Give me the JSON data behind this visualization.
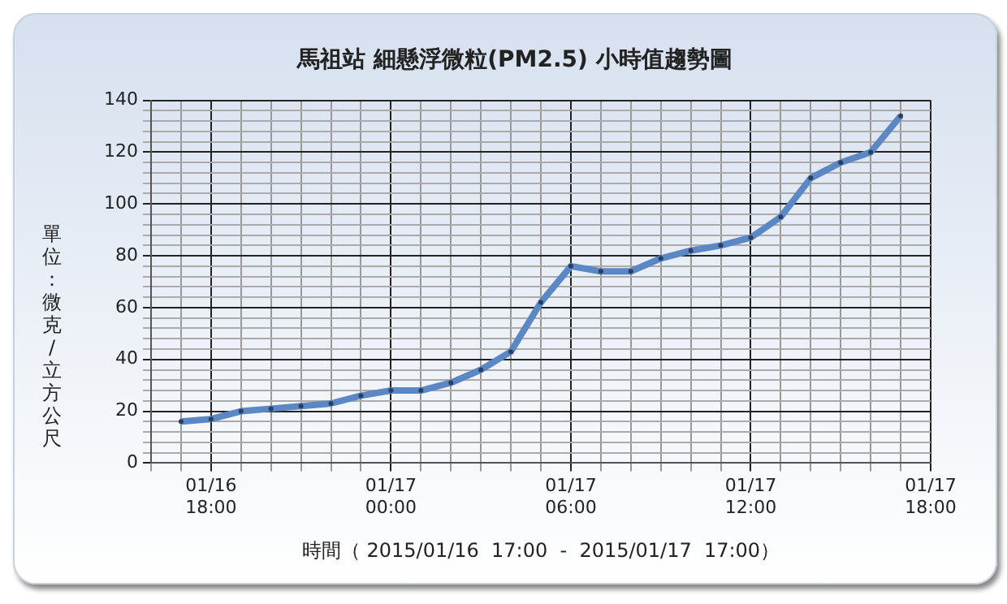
{
  "chart_data": {
    "type": "line",
    "title": "馬祖站 細懸浮微粒(PM2.5) 小時值趨勢圖",
    "xlabel": "時間（ 2015/01/16  17:00  -  2015/01/17  17:00）",
    "ylabel": "單位：微克/立方公尺",
    "x": [
      "2015-01-16T17:00",
      "2015-01-16T18:00",
      "2015-01-16T19:00",
      "2015-01-16T20:00",
      "2015-01-16T21:00",
      "2015-01-16T22:00",
      "2015-01-16T23:00",
      "2015-01-17T00:00",
      "2015-01-17T01:00",
      "2015-01-17T02:00",
      "2015-01-17T03:00",
      "2015-01-17T04:00",
      "2015-01-17T05:00",
      "2015-01-17T06:00",
      "2015-01-17T07:00",
      "2015-01-17T08:00",
      "2015-01-17T09:00",
      "2015-01-17T10:00",
      "2015-01-17T11:00",
      "2015-01-17T12:00",
      "2015-01-17T13:00",
      "2015-01-17T14:00",
      "2015-01-17T15:00",
      "2015-01-17T16:00",
      "2015-01-17T17:00"
    ],
    "series": [
      {
        "color": "#5b87c4",
        "values": [
          16,
          17,
          20,
          21,
          22,
          23,
          26,
          28,
          28,
          31,
          36,
          43,
          62,
          76,
          74,
          74,
          79,
          82,
          84,
          87,
          95,
          110,
          116,
          120,
          134
        ]
      }
    ],
    "xlim": [
      "2015-01-16T16:00",
      "2015-01-17T18:00"
    ],
    "xticks": [
      {
        "value": "2015-01-16T16:00",
        "label": null
      },
      {
        "value": "2015-01-16T17:00",
        "label": null
      },
      {
        "value": "2015-01-16T18:00",
        "label": "01/16 18:00"
      },
      {
        "value": "2015-01-16T19:00",
        "label": null
      },
      {
        "value": "2015-01-16T20:00",
        "label": null
      },
      {
        "value": "2015-01-16T21:00",
        "label": null
      },
      {
        "value": "2015-01-16T22:00",
        "label": null
      },
      {
        "value": "2015-01-16T23:00",
        "label": null
      },
      {
        "value": "2015-01-17T00:00",
        "label": "01/17 00:00"
      },
      {
        "value": "2015-01-17T01:00",
        "label": null
      },
      {
        "value": "2015-01-17T02:00",
        "label": null
      },
      {
        "value": "2015-01-17T03:00",
        "label": null
      },
      {
        "value": "2015-01-17T04:00",
        "label": null
      },
      {
        "value": "2015-01-17T05:00",
        "label": null
      },
      {
        "value": "2015-01-17T06:00",
        "label": "01/17 06:00"
      },
      {
        "value": "2015-01-17T07:00",
        "label": null
      },
      {
        "value": "2015-01-17T08:00",
        "label": null
      },
      {
        "value": "2015-01-17T09:00",
        "label": null
      },
      {
        "value": "2015-01-17T10:00",
        "label": null
      },
      {
        "value": "2015-01-17T11:00",
        "label": null
      },
      {
        "value": "2015-01-17T12:00",
        "label": "01/17 12:00"
      },
      {
        "value": "2015-01-17T13:00",
        "label": null
      },
      {
        "value": "2015-01-17T14:00",
        "label": null
      },
      {
        "value": "2015-01-17T15:00",
        "label": null
      },
      {
        "value": "2015-01-17T16:00",
        "label": null
      },
      {
        "value": "2015-01-17T17:00",
        "label": null
      },
      {
        "value": "2015-01-17T18:00",
        "label": "01/17 18:00"
      }
    ],
    "ylim": [
      0,
      140
    ],
    "yticks": [
      0,
      {
        "value": 4,
        "label": null
      },
      {
        "value": 8,
        "label": null
      },
      {
        "value": 12,
        "label": null
      },
      {
        "value": 16,
        "label": null
      },
      20,
      {
        "value": 24,
        "label": null
      },
      {
        "value": 28,
        "label": null
      },
      {
        "value": 32,
        "label": null
      },
      {
        "value": 36,
        "label": null
      },
      40,
      {
        "value": 44,
        "label": null
      },
      {
        "value": 48,
        "label": null
      },
      {
        "value": 52,
        "label": null
      },
      {
        "value": 56,
        "label": null
      },
      60,
      {
        "value": 64,
        "label": null
      },
      {
        "value": 68,
        "label": null
      },
      {
        "value": 72,
        "label": null
      },
      {
        "value": 76,
        "label": null
      },
      80,
      {
        "value": 84,
        "label": null
      },
      {
        "value": 88,
        "label": null
      },
      {
        "value": 92,
        "label": null
      },
      {
        "value": 96,
        "label": null
      },
      100,
      {
        "value": 104,
        "label": null
      },
      {
        "value": 108,
        "label": null
      },
      {
        "value": 112,
        "label": null
      },
      {
        "value": 116,
        "label": null
      },
      120,
      {
        "value": 124,
        "label": null
      },
      {
        "value": 128,
        "label": null
      },
      {
        "value": 132,
        "label": null
      },
      {
        "value": 136,
        "label": null
      },
      140
    ],
    "grid": true,
    "legend": false,
    "marker": "circle",
    "line_style": "solid"
  }
}
